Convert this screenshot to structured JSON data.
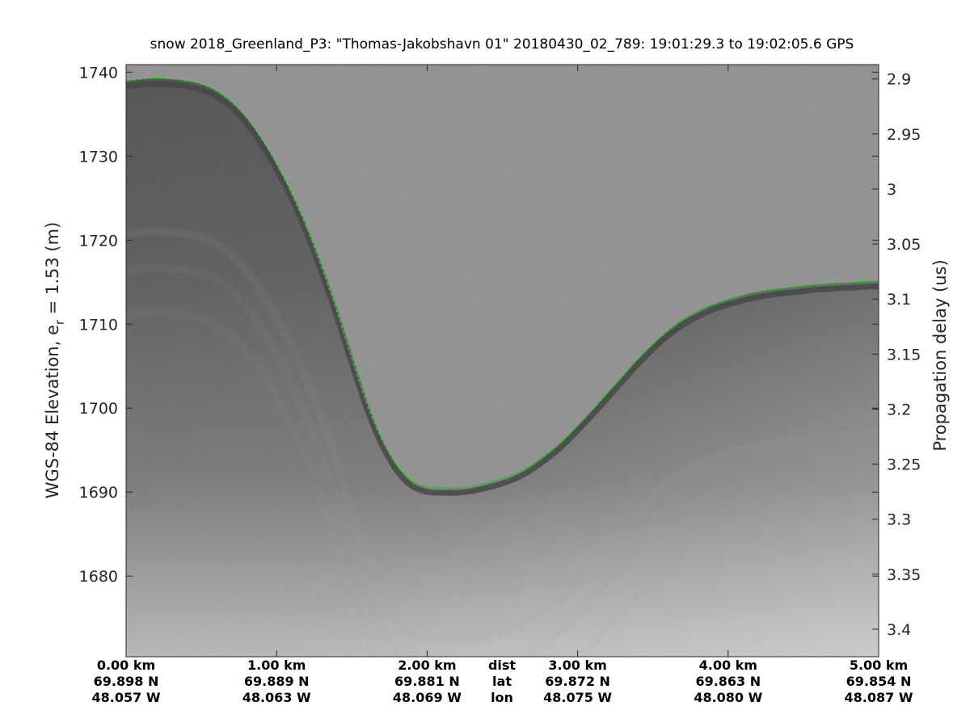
{
  "chart_data": {
    "type": "line",
    "title": "snow 2018_Greenland_P3: \"Thomas-Jakobshavn 01\"  20180430_02_789: 19:01:29.3 to 19:02:05.6 GPS",
    "ylabel": "WGS-84 Elevation, e",
    "ylabel_sub": "r",
    "ylabel_tail": " = 1.53 (m)",
    "y2label": "Propagation delay (us)",
    "ylim": [
      1670.4,
      1740.9
    ],
    "y2lim": [
      2.887,
      3.425
    ],
    "xlim": [
      0,
      5
    ],
    "yticks": [
      "1740",
      "1730",
      "1720",
      "1710",
      "1700",
      "1690",
      "1680"
    ],
    "yticks_values": [
      1740,
      1730,
      1720,
      1710,
      1700,
      1690,
      1680
    ],
    "y2ticks": [
      "2.9",
      "2.95",
      "3",
      "3.05",
      "3.1",
      "3.15",
      "3.2",
      "3.25",
      "3.3",
      "3.35",
      "3.4"
    ],
    "y2ticks_values": [
      2.9,
      2.95,
      3.0,
      3.05,
      3.1,
      3.15,
      3.2,
      3.25,
      3.3,
      3.35,
      3.4
    ],
    "x_ticks": [
      {
        "x": 0,
        "dist": "0.00 km",
        "lat": "69.898 N",
        "lon": "48.057 W"
      },
      {
        "x": 1,
        "dist": "1.00 km",
        "lat": "69.889 N",
        "lon": "48.063 W"
      },
      {
        "x": 2,
        "dist": "2.00 km",
        "lat": "69.881 N",
        "lon": "48.069 W"
      },
      {
        "x": 3,
        "dist": "3.00 km",
        "lat": "69.872 N",
        "lon": "48.075 W"
      },
      {
        "x": 4,
        "dist": "4.00 km",
        "lat": "69.863 N",
        "lon": "48.080 W"
      },
      {
        "x": 5,
        "dist": "5.00 km",
        "lat": "69.854 N",
        "lon": "48.087 W"
      }
    ],
    "row_labels": {
      "dist": "dist",
      "lat": "lat",
      "lon": "lon"
    },
    "grid": false,
    "colormap": "gray",
    "series": [
      {
        "color": "#22dd22",
        "x": [
          0,
          0.1,
          0.2,
          0.3,
          0.4,
          0.5,
          0.6,
          0.7,
          0.8,
          0.9,
          1.0,
          1.1,
          1.2,
          1.3,
          1.4,
          1.5,
          1.6,
          1.7,
          1.8,
          1.9,
          2.0,
          2.1,
          2.2,
          2.3,
          2.4,
          2.5,
          2.6,
          2.7,
          2.8,
          2.9,
          3.0,
          3.1,
          3.2,
          3.3,
          3.4,
          3.5,
          3.6,
          3.7,
          3.8,
          3.9,
          4.0,
          4.1,
          4.2,
          4.3,
          4.4,
          4.5,
          4.6,
          4.7,
          4.8,
          4.9,
          5.0
        ],
        "y": [
          1739.0,
          1739.2,
          1739.3,
          1739.2,
          1739.0,
          1738.6,
          1737.8,
          1736.5,
          1734.6,
          1732.1,
          1729.1,
          1725.6,
          1721.5,
          1716.8,
          1711.6,
          1706.0,
          1700.6,
          1696.3,
          1693.2,
          1691.4,
          1690.7,
          1690.6,
          1690.6,
          1690.8,
          1691.2,
          1691.7,
          1692.4,
          1693.4,
          1694.7,
          1696.2,
          1698.0,
          1699.9,
          1701.9,
          1703.9,
          1705.9,
          1707.7,
          1709.3,
          1710.6,
          1711.6,
          1712.4,
          1713.0,
          1713.5,
          1713.9,
          1714.2,
          1714.4,
          1714.6,
          1714.8,
          1714.9,
          1715.0,
          1715.1,
          1715.2
        ]
      }
    ]
  }
}
